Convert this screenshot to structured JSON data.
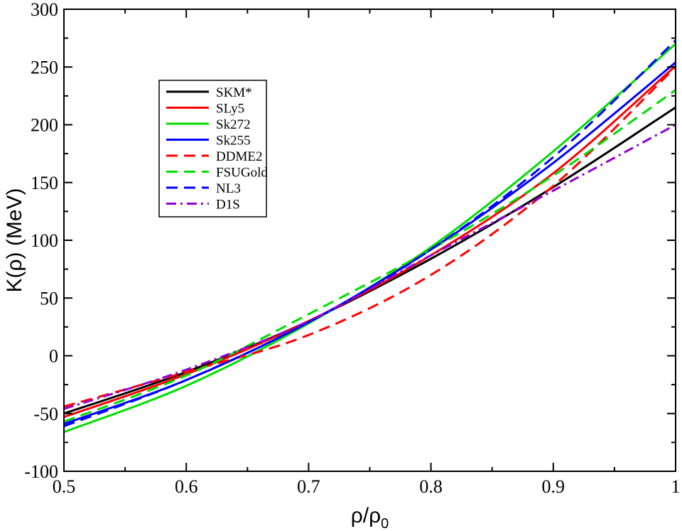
{
  "chart_data": {
    "type": "line",
    "xlabel": "ρ/ρ",
    "xlabel_sub": "0",
    "ylabel": "K(ρ)   (MeV)",
    "xlim": [
      0.5,
      1.0
    ],
    "ylim": [
      -100,
      300
    ],
    "xticks": [
      0.5,
      0.6,
      0.7,
      0.8,
      0.9,
      1.0
    ],
    "xtick_labels": [
      "0.5",
      "0.6",
      "0.7",
      "0.8",
      "0.9",
      "1"
    ],
    "yticks": [
      -100,
      -50,
      0,
      50,
      100,
      150,
      200,
      250,
      300
    ],
    "ytick_labels": [
      "-100",
      "-50",
      "0",
      "50",
      "100",
      "150",
      "200",
      "250",
      "300"
    ],
    "grid": false,
    "legend_position": "top-left",
    "x": [
      0.5,
      0.6,
      0.7,
      0.8,
      0.9,
      1.0
    ],
    "series": [
      {
        "name": "SKM*",
        "color": "#000000",
        "dash": "solid",
        "values": [
          -50,
          -14,
          30,
          84,
          146,
          215
        ]
      },
      {
        "name": "SLy5",
        "color": "#ff0000",
        "dash": "solid",
        "values": [
          -53,
          -16,
          30,
          87,
          158,
          251
        ]
      },
      {
        "name": "Sk272",
        "color": "#00dd00",
        "dash": "solid",
        "values": [
          -66,
          -26,
          28,
          94,
          177,
          270
        ]
      },
      {
        "name": "Sk255",
        "color": "#0000ff",
        "dash": "solid",
        "values": [
          -59,
          -21,
          29,
          92,
          167,
          254
        ]
      },
      {
        "name": "DDME2",
        "color": "#ff0000",
        "dash": "dashed",
        "values": [
          -44,
          -14,
          18,
          70,
          147,
          250
        ]
      },
      {
        "name": "FSUGold",
        "color": "#00dd00",
        "dash": "dashed",
        "values": [
          -57,
          -17,
          36,
          92,
          156,
          230
        ]
      },
      {
        "name": "NL3",
        "color": "#0000ff",
        "dash": "dashed",
        "values": [
          -61,
          -21,
          29,
          92,
          172,
          273
        ]
      },
      {
        "name": "D1S",
        "color": "#9400d3",
        "dash": "dashdot",
        "values": [
          -46,
          -12,
          30,
          87,
          143,
          200
        ]
      }
    ]
  }
}
